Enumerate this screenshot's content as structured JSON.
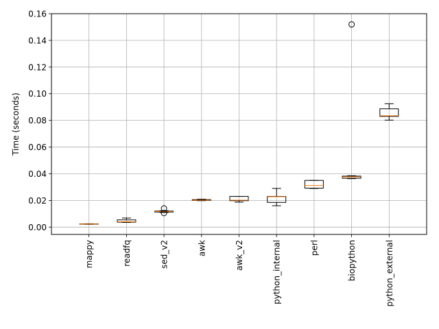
{
  "chart_data": {
    "type": "box",
    "title": "",
    "xlabel": "",
    "ylabel": "Time (seconds)",
    "ylim": [
      -0.0055,
      0.16
    ],
    "yticks": [
      0.0,
      0.02,
      0.04,
      0.06,
      0.08,
      0.1,
      0.12,
      0.14,
      0.16
    ],
    "ytick_labels": [
      "0.00",
      "0.02",
      "0.04",
      "0.06",
      "0.08",
      "0.10",
      "0.12",
      "0.14",
      "0.16"
    ],
    "grid": true,
    "categories": [
      "mappy",
      "readfq",
      "sed_v2",
      "awk",
      "awk_v2",
      "python_internal",
      "perl",
      "biopython",
      "python_external"
    ],
    "boxes": [
      {
        "whislo": 0.0021,
        "q1": 0.0022,
        "med": 0.0023,
        "q3": 0.0024,
        "whishi": 0.0025,
        "fliers": []
      },
      {
        "whislo": 0.0035,
        "q1": 0.0037,
        "med": 0.004,
        "q3": 0.0054,
        "whishi": 0.0068,
        "fliers": []
      },
      {
        "whislo": 0.011,
        "q1": 0.0113,
        "med": 0.0117,
        "q3": 0.012,
        "whishi": 0.0123,
        "fliers": [
          0.0105,
          0.014
        ]
      },
      {
        "whislo": 0.0198,
        "q1": 0.02,
        "med": 0.0202,
        "q3": 0.0206,
        "whishi": 0.0209,
        "fliers": []
      },
      {
        "whislo": 0.0187,
        "q1": 0.0198,
        "med": 0.0202,
        "q3": 0.023,
        "whishi": 0.023,
        "fliers": []
      },
      {
        "whislo": 0.016,
        "q1": 0.0185,
        "med": 0.0228,
        "q3": 0.023,
        "whishi": 0.029,
        "fliers": []
      },
      {
        "whislo": 0.029,
        "q1": 0.0292,
        "med": 0.0312,
        "q3": 0.035,
        "whishi": 0.035,
        "fliers": []
      },
      {
        "whislo": 0.0363,
        "q1": 0.0366,
        "med": 0.0376,
        "q3": 0.0382,
        "whishi": 0.0385,
        "fliers": [
          0.152
        ]
      },
      {
        "whislo": 0.0802,
        "q1": 0.083,
        "med": 0.0835,
        "q3": 0.0887,
        "whishi": 0.0925,
        "fliers": []
      }
    ],
    "colors": {
      "box": "#000000",
      "median": "#ff7f0e",
      "grid": "#b0b0b0"
    }
  }
}
